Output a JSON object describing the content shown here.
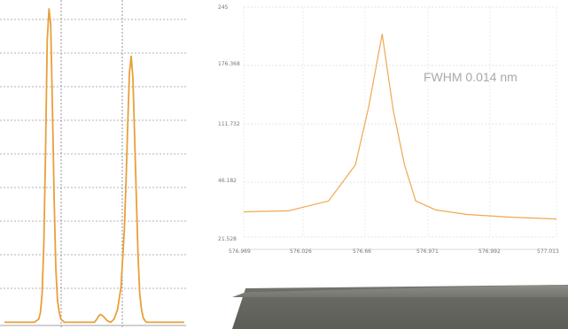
{
  "chart_data": [
    {
      "type": "line",
      "title": "",
      "xlabel": "",
      "ylabel": "",
      "grid": true,
      "color": "#e8a03a",
      "x": [
        0,
        5,
        10,
        20,
        30,
        35,
        40,
        42,
        44,
        46,
        48,
        50,
        52,
        54,
        56,
        58,
        60,
        62,
        64,
        66,
        68,
        70,
        80,
        90,
        100,
        105,
        108,
        110,
        112,
        115,
        120,
        124,
        128,
        132,
        136,
        140,
        142,
        144,
        146,
        148,
        150,
        152,
        154,
        156,
        158,
        160,
        162,
        164,
        166,
        170,
        180,
        200,
        210
      ],
      "y": [
        0.01,
        0.01,
        0.01,
        0.01,
        0.01,
        0.01,
        0.02,
        0.04,
        0.1,
        0.26,
        0.55,
        0.9,
        1.0,
        0.95,
        0.7,
        0.4,
        0.18,
        0.08,
        0.04,
        0.02,
        0.015,
        0.01,
        0.01,
        0.01,
        0.01,
        0.01,
        0.02,
        0.03,
        0.035,
        0.03,
        0.015,
        0.01,
        0.02,
        0.05,
        0.12,
        0.3,
        0.46,
        0.64,
        0.8,
        0.85,
        0.78,
        0.6,
        0.4,
        0.22,
        0.1,
        0.05,
        0.025,
        0.015,
        0.01,
        0.01,
        0.01,
        0.01,
        0.01
      ],
      "xlim": [
        0,
        210
      ],
      "ylim": [
        0,
        1.0
      ]
    },
    {
      "type": "line",
      "title": "",
      "xlabel": "",
      "ylabel": "",
      "grid": true,
      "color": "#f0a850",
      "annotation": "FWHM 0.014 nm",
      "x_ticks": [
        "576.969",
        "576.026",
        "576.66",
        "576.971",
        "576.992",
        "577.013"
      ],
      "y_ticks": [
        "21.528",
        "46.182",
        "111.732",
        "176.368",
        "245"
      ],
      "x": [
        0,
        1,
        1.9,
        2.5,
        2.8,
        3.1,
        3.35,
        3.6,
        3.85,
        4.3,
        5,
        6,
        7
      ],
      "y": [
        28,
        29,
        40,
        80,
        145,
        225,
        140,
        80,
        40,
        30,
        25,
        22,
        20
      ],
      "xlim": [
        0,
        7
      ],
      "ylim": [
        0,
        255
      ]
    }
  ]
}
